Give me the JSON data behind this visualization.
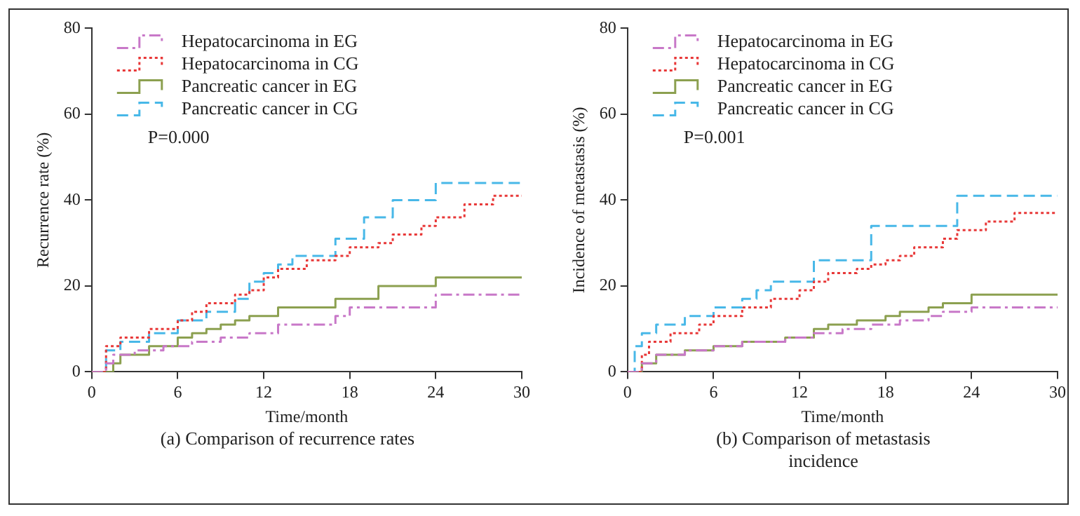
{
  "chart_data": [
    {
      "type": "step",
      "title": "(a) Comparison of recurrence rates",
      "xlabel": "Time/month",
      "ylabel": "Recurrence rate (%)",
      "xlim": [
        0,
        30
      ],
      "xticks": [
        0,
        6,
        12,
        18,
        24,
        30
      ],
      "ylim": [
        0,
        80
      ],
      "yticks": [
        0,
        20,
        40,
        60,
        80
      ],
      "grid": false,
      "legend": "top left",
      "annotations": [
        "P=0.000"
      ],
      "series": [
        {
          "name": "Hepatocarcinoma in EG",
          "color": "#c878c8",
          "line_style": "dashdot",
          "x": [
            0,
            1,
            1.5,
            3,
            5,
            7,
            9,
            11,
            13,
            17,
            18,
            24,
            30
          ],
          "values": [
            0,
            2,
            4,
            5,
            6,
            7,
            8,
            9,
            11,
            13,
            15,
            18,
            18
          ]
        },
        {
          "name": "Hepatocarcinoma in CG",
          "color": "#e83838",
          "line_style": "dotted",
          "x": [
            0,
            1,
            2,
            4,
            6,
            7,
            8,
            10,
            11,
            12,
            13,
            15,
            17,
            18,
            20,
            21,
            23,
            24,
            26,
            28,
            30
          ],
          "values": [
            0,
            6,
            8,
            10,
            12,
            14,
            16,
            18,
            19,
            22,
            24,
            26,
            27,
            29,
            30,
            32,
            34,
            36,
            39,
            41,
            41
          ]
        },
        {
          "name": "Pancreatic cancer in EG",
          "color": "#8ca050",
          "line_style": "solid",
          "x": [
            0,
            1.5,
            2,
            4,
            6,
            7,
            8,
            9,
            10,
            11,
            13,
            17,
            20,
            24,
            30
          ],
          "values": [
            0,
            2,
            4,
            6,
            8,
            9,
            10,
            11,
            12,
            13,
            15,
            17,
            20,
            22,
            22
          ]
        },
        {
          "name": "Pancreatic cancer in CG",
          "color": "#48b8e8",
          "line_style": "dashed",
          "x": [
            0,
            1,
            2,
            4,
            6,
            8,
            10,
            11,
            12,
            13,
            14,
            17,
            19,
            21,
            24,
            30
          ],
          "values": [
            0,
            5,
            7,
            9,
            12,
            14,
            17,
            21,
            23,
            25,
            27,
            31,
            36,
            40,
            44,
            44
          ]
        }
      ]
    },
    {
      "type": "step",
      "title": "(b) Comparison of metastasis incidence",
      "xlabel": "Time/month",
      "ylabel": "Incidence of metastasis (%)",
      "xlim": [
        0,
        30
      ],
      "xticks": [
        0,
        6,
        12,
        18,
        24,
        30
      ],
      "ylim": [
        0,
        80
      ],
      "yticks": [
        0,
        20,
        40,
        60,
        80
      ],
      "grid": false,
      "legend": "top left",
      "annotations": [
        "P=0.001"
      ],
      "series": [
        {
          "name": "Hepatocarcinoma in EG",
          "color": "#c878c8",
          "line_style": "dashdot",
          "x": [
            0,
            1,
            2,
            4,
            6,
            8,
            11,
            13,
            15,
            17,
            19,
            21,
            22,
            24,
            30
          ],
          "values": [
            0,
            2,
            4,
            5,
            6,
            7,
            8,
            9,
            10,
            11,
            12,
            13,
            14,
            15,
            15
          ]
        },
        {
          "name": "Hepatocarcinoma in CG",
          "color": "#e83838",
          "line_style": "dotted",
          "x": [
            0,
            1,
            1.5,
            3,
            5,
            6,
            8,
            10,
            12,
            13,
            14,
            16,
            17,
            18,
            19,
            20,
            22,
            23,
            25,
            27,
            30
          ],
          "values": [
            0,
            4,
            7,
            9,
            11,
            13,
            15,
            17,
            19,
            21,
            23,
            24,
            25,
            26,
            27,
            29,
            31,
            33,
            35,
            37,
            37
          ]
        },
        {
          "name": "Pancreatic cancer in EG",
          "color": "#8ca050",
          "line_style": "solid",
          "x": [
            0,
            1,
            2,
            4,
            6,
            8,
            11,
            13,
            14,
            16,
            18,
            19,
            21,
            22,
            24,
            30
          ],
          "values": [
            0,
            2,
            4,
            5,
            6,
            7,
            8,
            10,
            11,
            12,
            13,
            14,
            15,
            16,
            18,
            18
          ]
        },
        {
          "name": "Pancreatic cancer in CG",
          "color": "#48b8e8",
          "line_style": "dashed",
          "x": [
            0,
            0.5,
            1,
            2,
            4,
            6,
            8,
            9,
            10,
            13,
            17,
            23,
            30
          ],
          "values": [
            0,
            6,
            9,
            11,
            13,
            15,
            17,
            19,
            21,
            26,
            34,
            41,
            41
          ]
        }
      ]
    }
  ]
}
